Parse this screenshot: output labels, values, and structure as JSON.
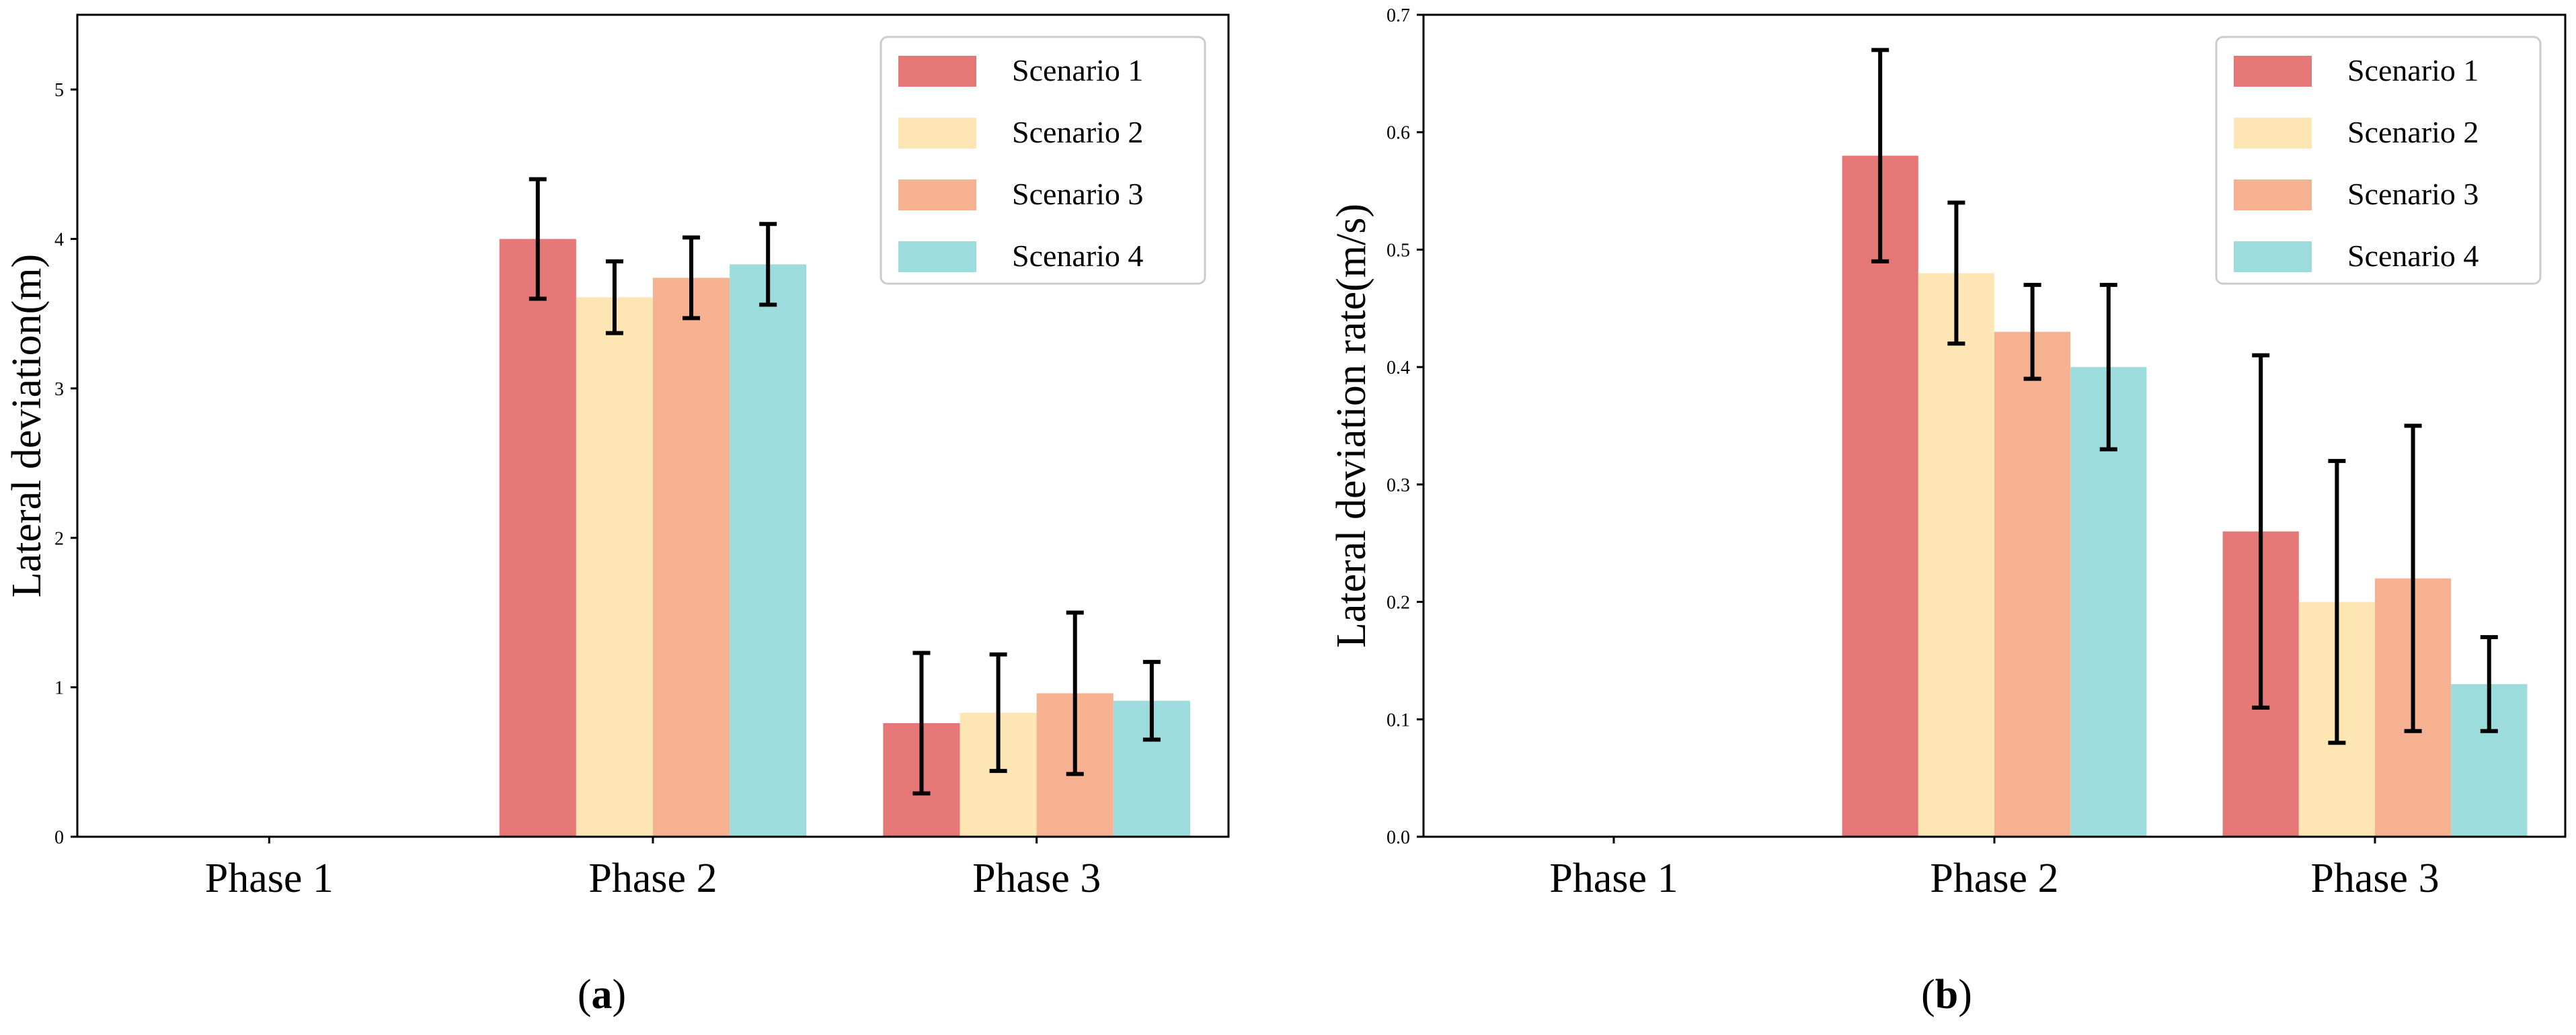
{
  "chart_data": [
    {
      "type": "bar",
      "title": "",
      "xlabel": "",
      "ylabel": "Lateral deviation(m)",
      "ylim": [
        0,
        5.5
      ],
      "yticks": [
        0,
        1,
        2,
        3,
        4,
        5
      ],
      "ytick_labels": [
        "0",
        "1",
        "2",
        "3",
        "4",
        "5"
      ],
      "categories": [
        "Phase 1",
        "Phase 2",
        "Phase 3"
      ],
      "series": [
        {
          "name": "Scenario 1",
          "color": "#e57877",
          "values": [
            0,
            4.0,
            0.76
          ],
          "err": [
            0,
            0.4,
            0.47
          ]
        },
        {
          "name": "Scenario 2",
          "color": "#fde6b4",
          "values": [
            0,
            3.61,
            0.83
          ],
          "err": [
            0,
            0.24,
            0.39
          ]
        },
        {
          "name": "Scenario 3",
          "color": "#f6b191",
          "values": [
            0,
            3.74,
            0.96
          ],
          "err": [
            0,
            0.27,
            0.54
          ]
        },
        {
          "name": "Scenario 4",
          "color": "#9ddcdc",
          "values": [
            0,
            3.83,
            0.91
          ],
          "err": [
            0,
            0.27,
            0.26
          ]
        }
      ],
      "legend": "top-right",
      "panel_label": {
        "open": "(",
        "letter": "a",
        "close": ")"
      }
    },
    {
      "type": "bar",
      "title": "",
      "xlabel": "",
      "ylabel": "Lateral deviation rate(m/s)",
      "ylim": [
        0,
        0.7
      ],
      "yticks": [
        0,
        0.1,
        0.2,
        0.3,
        0.4,
        0.5,
        0.6,
        0.7
      ],
      "ytick_labels": [
        "0.0",
        "0.1",
        "0.2",
        "0.3",
        "0.4",
        "0.5",
        "0.6",
        "0.7"
      ],
      "categories": [
        "Phase 1",
        "Phase 2",
        "Phase 3"
      ],
      "series": [
        {
          "name": "Scenario 1",
          "color": "#e57877",
          "values": [
            0,
            0.58,
            0.26
          ],
          "err": [
            0,
            0.09,
            0.15
          ]
        },
        {
          "name": "Scenario 2",
          "color": "#fde6b4",
          "values": [
            0,
            0.48,
            0.2
          ],
          "err": [
            0,
            0.06,
            0.12
          ]
        },
        {
          "name": "Scenario 3",
          "color": "#f6b191",
          "values": [
            0,
            0.43,
            0.22
          ],
          "err": [
            0,
            0.04,
            0.13
          ]
        },
        {
          "name": "Scenario 4",
          "color": "#9ddcdc",
          "values": [
            0,
            0.4,
            0.13
          ],
          "err": [
            0,
            0.07,
            0.04
          ]
        }
      ],
      "legend": "top-right",
      "panel_label": {
        "open": "(",
        "letter": "b",
        "close": ")"
      }
    }
  ]
}
